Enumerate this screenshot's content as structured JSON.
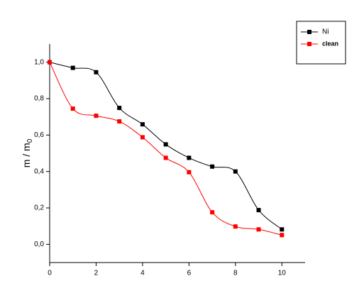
{
  "chart_data": {
    "type": "line",
    "ylabel": {
      "text": "m / m",
      "sub": "0"
    },
    "x": [
      0,
      1,
      2,
      3,
      4,
      5,
      6,
      7,
      8,
      9,
      10
    ],
    "series": [
      {
        "name": "Ni",
        "color": "#000000",
        "values": [
          1.0,
          0.969,
          0.945,
          0.749,
          0.659,
          0.549,
          0.475,
          0.427,
          0.4,
          0.188,
          0.082
        ]
      },
      {
        "name": "clean",
        "color": "#ff0000",
        "values": [
          1.0,
          0.745,
          0.706,
          0.675,
          0.588,
          0.475,
          0.396,
          0.176,
          0.098,
          0.082,
          0.051
        ]
      }
    ],
    "xlim": [
      0,
      11
    ],
    "ylim": [
      -0.1,
      1.1
    ],
    "xticks": [
      0,
      2,
      4,
      6,
      8,
      10
    ],
    "yticks": [
      {
        "value": 0.0,
        "label": "0,0"
      },
      {
        "value": 0.2,
        "label": "0,2"
      },
      {
        "value": 0.4,
        "label": "0,4"
      },
      {
        "value": 0.6,
        "label": "0,6"
      },
      {
        "value": 0.8,
        "label": "0,8"
      },
      {
        "value": 1.0,
        "label": "1,0"
      }
    ],
    "legend": "top-right",
    "smooth": true,
    "grid": false
  }
}
